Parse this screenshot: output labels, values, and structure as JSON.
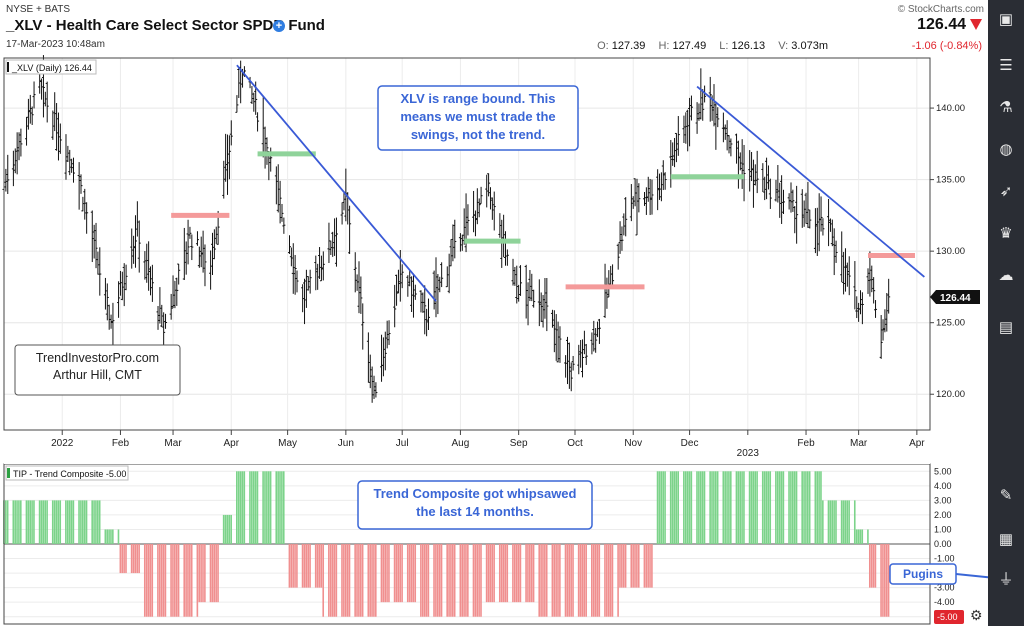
{
  "header": {
    "exchange": "NYSE + BATS",
    "title": "_XLV - Health Care Select Sector SPDR Fund",
    "datetime": "17-Mar-2023 10:48am",
    "copyright": "© StockCharts.com",
    "last": "126.44",
    "ohlc": {
      "o_label": "O:",
      "o": "127.39",
      "h_label": "H:",
      "h": "127.49",
      "l_label": "L:",
      "l": "126.13",
      "v_label": "V:",
      "v": "3.073m"
    },
    "change": "-1.06 (-0.84%)",
    "colors": {
      "down": "#e0262e",
      "accent": "#2f7de1"
    }
  },
  "sidebar": {
    "icons": [
      "chart-settings-icon",
      "sliders-icon",
      "flask-icon",
      "globe-icon",
      "rocket-icon",
      "trophy-icon",
      "cloud-icon",
      "document-icon",
      "tools-icon",
      "tv-icon",
      "plug-icon"
    ]
  },
  "chart_data": [
    {
      "type": "ohlc",
      "legend": "_XLV (Daily) 126.44",
      "price_tag": "126.44",
      "x_ticks": [
        "2022",
        "Feb",
        "Mar",
        "Apr",
        "May",
        "Jun",
        "Jul",
        "Aug",
        "Sep",
        "Oct",
        "Nov",
        "Dec",
        "2023",
        "Feb",
        "Mar",
        "Apr"
      ],
      "y_ticks": [
        "140.00",
        "135.00",
        "130.00",
        "125.00",
        "120.00"
      ],
      "ylim": [
        117.5,
        143.5
      ],
      "grid": true,
      "close_path": [
        {
          "date": "2021-12-01",
          "value": 134.5
        },
        {
          "date": "2021-12-20",
          "value": 141.5
        },
        {
          "date": "2022-01-10",
          "value": 135.0
        },
        {
          "date": "2022-01-27",
          "value": 125.0
        },
        {
          "date": "2022-02-10",
          "value": 131.5
        },
        {
          "date": "2022-02-24",
          "value": 124.5
        },
        {
          "date": "2022-03-10",
          "value": 131.0
        },
        {
          "date": "2022-03-21",
          "value": 129.0
        },
        {
          "date": "2022-04-07",
          "value": 142.8
        },
        {
          "date": "2022-04-18",
          "value": 138.5
        },
        {
          "date": "2022-05-09",
          "value": 126.5
        },
        {
          "date": "2022-05-24",
          "value": 130.5
        },
        {
          "date": "2022-06-01",
          "value": 133.5
        },
        {
          "date": "2022-06-16",
          "value": 120.0
        },
        {
          "date": "2022-07-01",
          "value": 128.5
        },
        {
          "date": "2022-07-14",
          "value": 125.5
        },
        {
          "date": "2022-08-01",
          "value": 131.0
        },
        {
          "date": "2022-08-16",
          "value": 134.2
        },
        {
          "date": "2022-08-31",
          "value": 127.5
        },
        {
          "date": "2022-09-14",
          "value": 126.5
        },
        {
          "date": "2022-09-29",
          "value": 121.5
        },
        {
          "date": "2022-10-13",
          "value": 124.5
        },
        {
          "date": "2022-10-31",
          "value": 133.5
        },
        {
          "date": "2022-11-15",
          "value": 134.5
        },
        {
          "date": "2022-12-01",
          "value": 139.5
        },
        {
          "date": "2022-12-12",
          "value": 140.8
        },
        {
          "date": "2022-12-29",
          "value": 136.0
        },
        {
          "date": "2023-01-24",
          "value": 133.0
        },
        {
          "date": "2023-02-14",
          "value": 131.5
        },
        {
          "date": "2023-03-01",
          "value": 126.0
        },
        {
          "date": "2023-03-07",
          "value": 128.5
        },
        {
          "date": "2023-03-13",
          "value": 124.0
        },
        {
          "date": "2023-03-17",
          "value": 126.44
        }
      ],
      "trendlines": [
        {
          "from": {
            "date": "2022-04-04",
            "value": 143.0
          },
          "to": {
            "date": "2022-07-19",
            "value": 126.5
          }
        },
        {
          "from": {
            "date": "2022-12-05",
            "value": 141.5
          },
          "to": {
            "date": "2023-04-05",
            "value": 128.2
          }
        }
      ],
      "resistance_levels": [
        {
          "from": "2022-02-28",
          "to": "2022-03-31",
          "value": 132.5
        },
        {
          "from": "2022-09-26",
          "to": "2022-11-07",
          "value": 127.5
        },
        {
          "from": "2023-03-06",
          "to": "2023-03-31",
          "value": 129.7
        }
      ],
      "support_levels": [
        {
          "from": "2022-04-15",
          "to": "2022-05-16",
          "value": 136.8
        },
        {
          "from": "2022-08-03",
          "to": "2022-09-02",
          "value": 130.7
        },
        {
          "from": "2022-11-21",
          "to": "2022-12-30",
          "value": 135.2
        }
      ],
      "annotations": [
        {
          "text": "XLV is range bound. This means we must trade the swings, not the trend."
        },
        {
          "text": "TrendInvestorPro.com Arthur Hill, CMT"
        }
      ]
    },
    {
      "type": "bar",
      "legend": "TIP - Trend Composite -5.00",
      "y_ticks": [
        "5.00",
        "4.00",
        "3.00",
        "2.00",
        "1.00",
        "0.00",
        "-1.00",
        "-2.00",
        "-3.00",
        "-4.00",
        "-5.00"
      ],
      "ylim": [
        -5.5,
        5.5
      ],
      "last_value": "-5.00",
      "colors": {
        "positive": "#7cd38a",
        "negative": "#f08f8f"
      },
      "segments": [
        {
          "from": "2021-12-01",
          "to": "2022-01-22",
          "value": 3
        },
        {
          "from": "2022-01-22",
          "to": "2022-02-01",
          "value": 1
        },
        {
          "from": "2022-02-01",
          "to": "2022-02-14",
          "value": -2
        },
        {
          "from": "2022-02-14",
          "to": "2022-03-15",
          "value": -5
        },
        {
          "from": "2022-03-15",
          "to": "2022-03-28",
          "value": -4
        },
        {
          "from": "2022-03-28",
          "to": "2022-04-03",
          "value": 2
        },
        {
          "from": "2022-04-03",
          "to": "2022-05-01",
          "value": 5
        },
        {
          "from": "2022-05-01",
          "to": "2022-05-20",
          "value": -3
        },
        {
          "from": "2022-05-20",
          "to": "2022-06-20",
          "value": -5
        },
        {
          "from": "2022-06-20",
          "to": "2022-07-10",
          "value": -4
        },
        {
          "from": "2022-07-10",
          "to": "2022-08-14",
          "value": -5
        },
        {
          "from": "2022-08-14",
          "to": "2022-09-10",
          "value": -4
        },
        {
          "from": "2022-09-10",
          "to": "2022-10-25",
          "value": -5
        },
        {
          "from": "2022-10-25",
          "to": "2022-11-14",
          "value": -3
        },
        {
          "from": "2022-11-14",
          "to": "2023-02-10",
          "value": 5
        },
        {
          "from": "2023-02-10",
          "to": "2023-02-28",
          "value": 3
        },
        {
          "from": "2023-02-28",
          "to": "2023-03-07",
          "value": 1
        },
        {
          "from": "2023-03-07",
          "to": "2023-03-12",
          "value": -3
        },
        {
          "from": "2023-03-12",
          "to": "2023-03-17",
          "value": -5
        }
      ],
      "annotations": [
        {
          "text": "Trend Composite got whipsawed the last 14 months."
        },
        {
          "text": "Pugins"
        }
      ]
    }
  ]
}
